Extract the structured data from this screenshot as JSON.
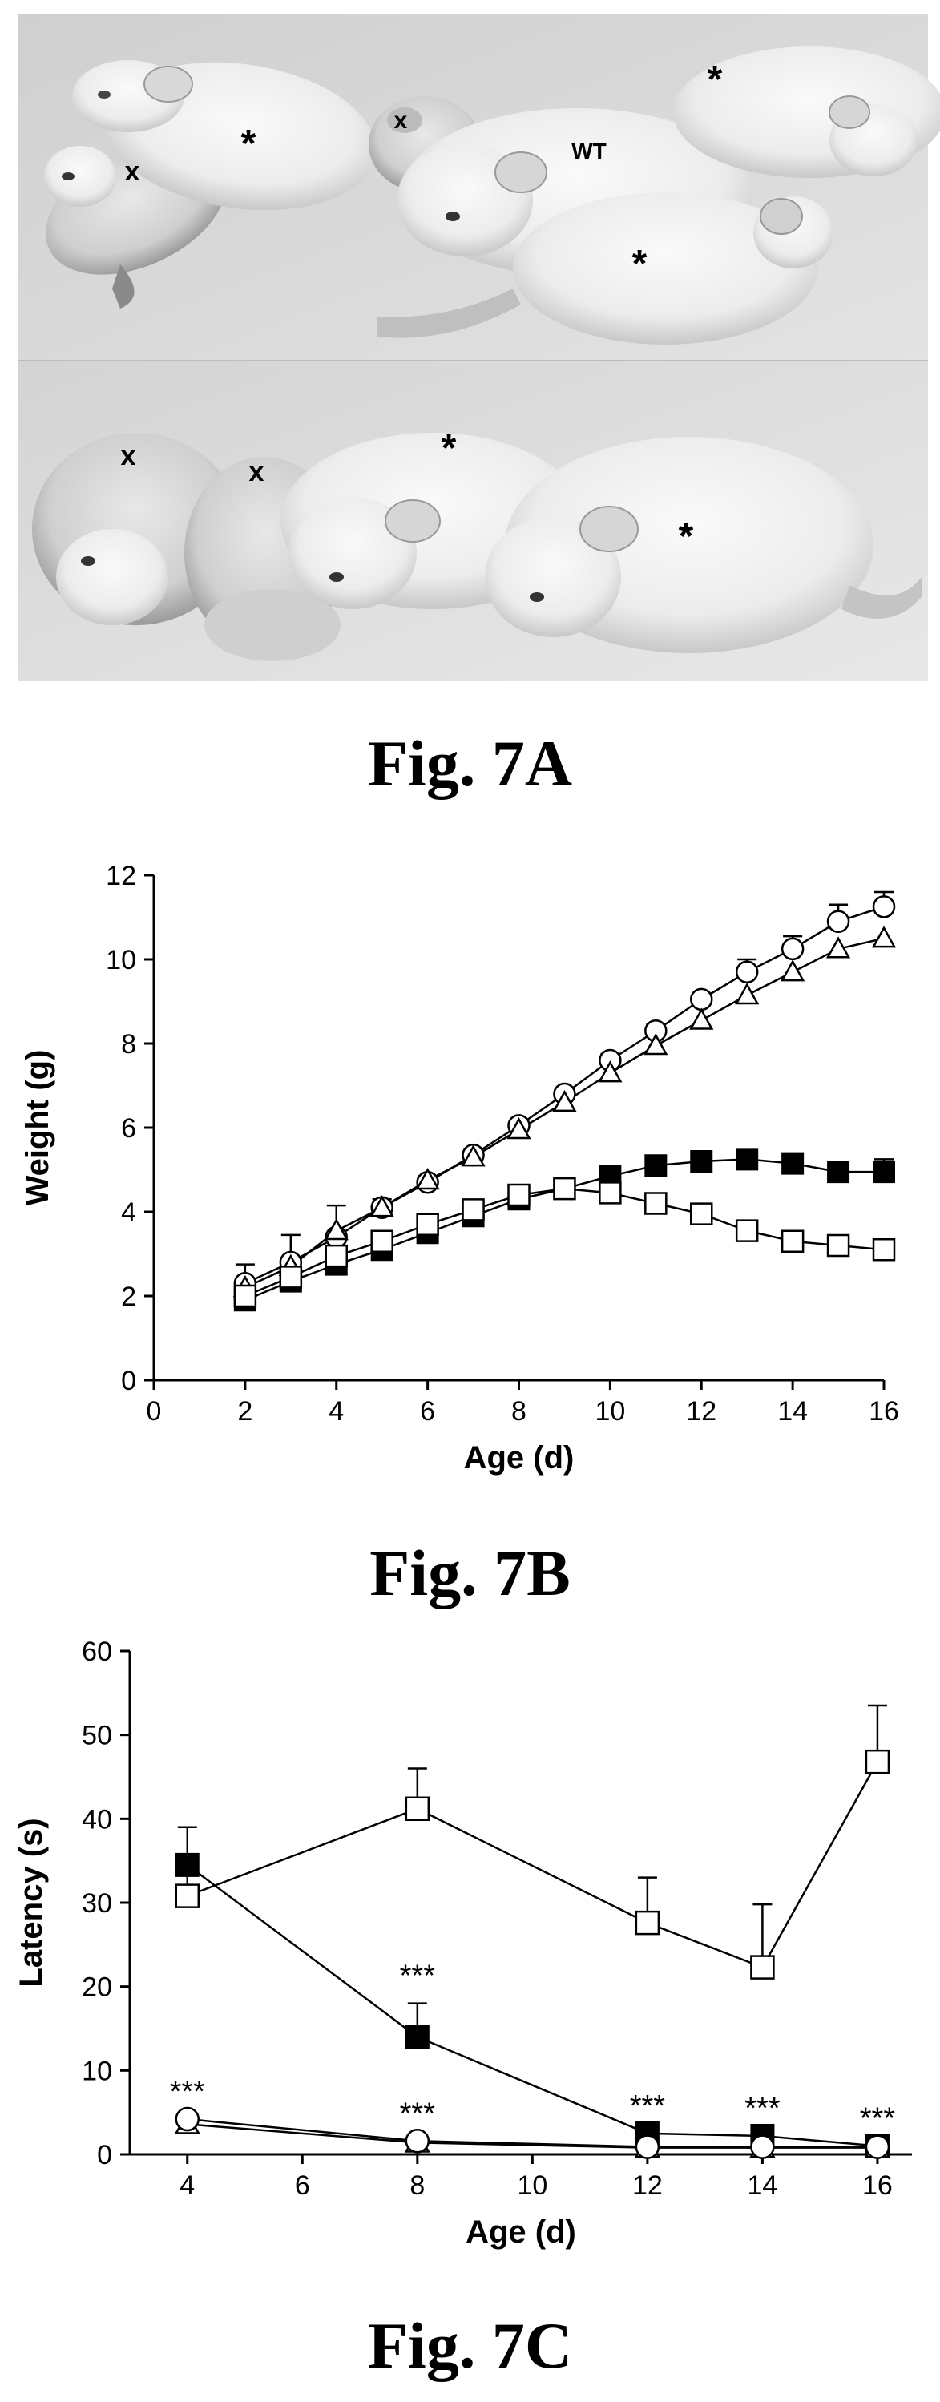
{
  "figures": {
    "a": {
      "caption": "Fig. 7A",
      "photo_labels": {
        "x1": "x",
        "x2": "x",
        "x3": "x",
        "x4": "x",
        "star1": "*",
        "star2": "*",
        "star3": "*",
        "star4": "*",
        "star5": "*",
        "wt": "WT"
      }
    },
    "b": {
      "caption": "Fig. 7B"
    },
    "c": {
      "caption": "Fig. 7C"
    }
  },
  "colors": {
    "ink": "#000000",
    "open_marker_fill": "#ffffff",
    "filled_marker_fill": "#000000",
    "photo_background": "#d9d9d9",
    "mouse_fur": "#f2f2f2"
  },
  "chart_data": [
    {
      "id": "fig7b",
      "type": "line",
      "xlabel": "Age (d)",
      "ylabel": "Weight (g)",
      "xlim": [
        0,
        16
      ],
      "ylim": [
        0,
        12
      ],
      "xticks": [
        0,
        2,
        4,
        6,
        8,
        10,
        12,
        14,
        16
      ],
      "yticks": [
        0,
        2,
        4,
        6,
        8,
        10,
        12
      ],
      "grid": false,
      "x": [
        2,
        3,
        4,
        5,
        6,
        7,
        8,
        9,
        10,
        11,
        12,
        13,
        14,
        15,
        16
      ],
      "series": [
        {
          "marker": "open-circle",
          "values": [
            2.3,
            2.8,
            3.4,
            4.1,
            4.7,
            5.35,
            6.05,
            6.8,
            7.6,
            8.3,
            9.05,
            9.7,
            10.25,
            10.9,
            11.25
          ],
          "error_upper": [
            2.75,
            3.45,
            4.15,
            4.3,
            4.85,
            5.5,
            6.15,
            6.9,
            7.75,
            8.45,
            9.2,
            10.0,
            10.55,
            11.3,
            11.6
          ]
        },
        {
          "marker": "open-triangle",
          "values": [
            2.2,
            2.7,
            3.55,
            4.1,
            4.75,
            5.3,
            5.95,
            6.6,
            7.3,
            7.95,
            8.55,
            9.15,
            9.7,
            10.25,
            10.5
          ]
        },
        {
          "marker": "filled-square",
          "values": [
            1.9,
            2.35,
            2.75,
            3.1,
            3.5,
            3.9,
            4.3,
            4.55,
            4.85,
            5.1,
            5.2,
            5.25,
            5.15,
            4.95,
            4.95
          ],
          "error_upper": [
            1.95,
            2.4,
            2.8,
            3.15,
            3.55,
            3.95,
            4.35,
            4.6,
            4.95,
            5.2,
            5.3,
            5.35,
            5.25,
            5.1,
            5.25
          ]
        },
        {
          "marker": "open-square",
          "values": [
            2.0,
            2.45,
            2.95,
            3.3,
            3.7,
            4.05,
            4.4,
            4.55,
            4.45,
            4.2,
            3.95,
            3.55,
            3.3,
            3.2,
            3.1
          ]
        }
      ]
    },
    {
      "id": "fig7c",
      "type": "line",
      "xlabel": "Age (d)",
      "ylabel": "Latency (s)",
      "xlim": [
        3,
        16.6
      ],
      "ylim": [
        0,
        60
      ],
      "xticks": [
        4,
        6,
        8,
        10,
        12,
        14,
        16
      ],
      "yticks": [
        0,
        10,
        20,
        30,
        40,
        50,
        60
      ],
      "grid": false,
      "x": [
        4,
        8,
        12,
        14,
        16
      ],
      "series": [
        {
          "marker": "open-square",
          "values": [
            30.8,
            41.2,
            27.6,
            22.3,
            46.8
          ],
          "error_upper": [
            35.0,
            46.0,
            33.0,
            29.8,
            53.5
          ]
        },
        {
          "marker": "filled-square",
          "values": [
            34.5,
            14.0,
            2.5,
            2.2,
            1.0
          ],
          "error_upper": [
            39.0,
            18.0,
            3.0,
            2.6,
            1.3
          ]
        },
        {
          "marker": "open-triangle",
          "values": [
            3.6,
            1.4,
            0.8,
            0.8,
            0.8
          ]
        },
        {
          "marker": "open-circle",
          "values": [
            4.2,
            1.6,
            0.9,
            0.9,
            0.9
          ]
        }
      ],
      "annotations": [
        {
          "x": 4,
          "y": 4.2,
          "text": "***"
        },
        {
          "x": 8,
          "y": 18.0,
          "text": "***"
        },
        {
          "x": 8,
          "y": 1.6,
          "text": "***"
        },
        {
          "x": 12,
          "y": 2.5,
          "text": "***"
        },
        {
          "x": 14,
          "y": 2.2,
          "text": "***"
        },
        {
          "x": 16,
          "y": 1.0,
          "text": "***"
        }
      ]
    }
  ]
}
